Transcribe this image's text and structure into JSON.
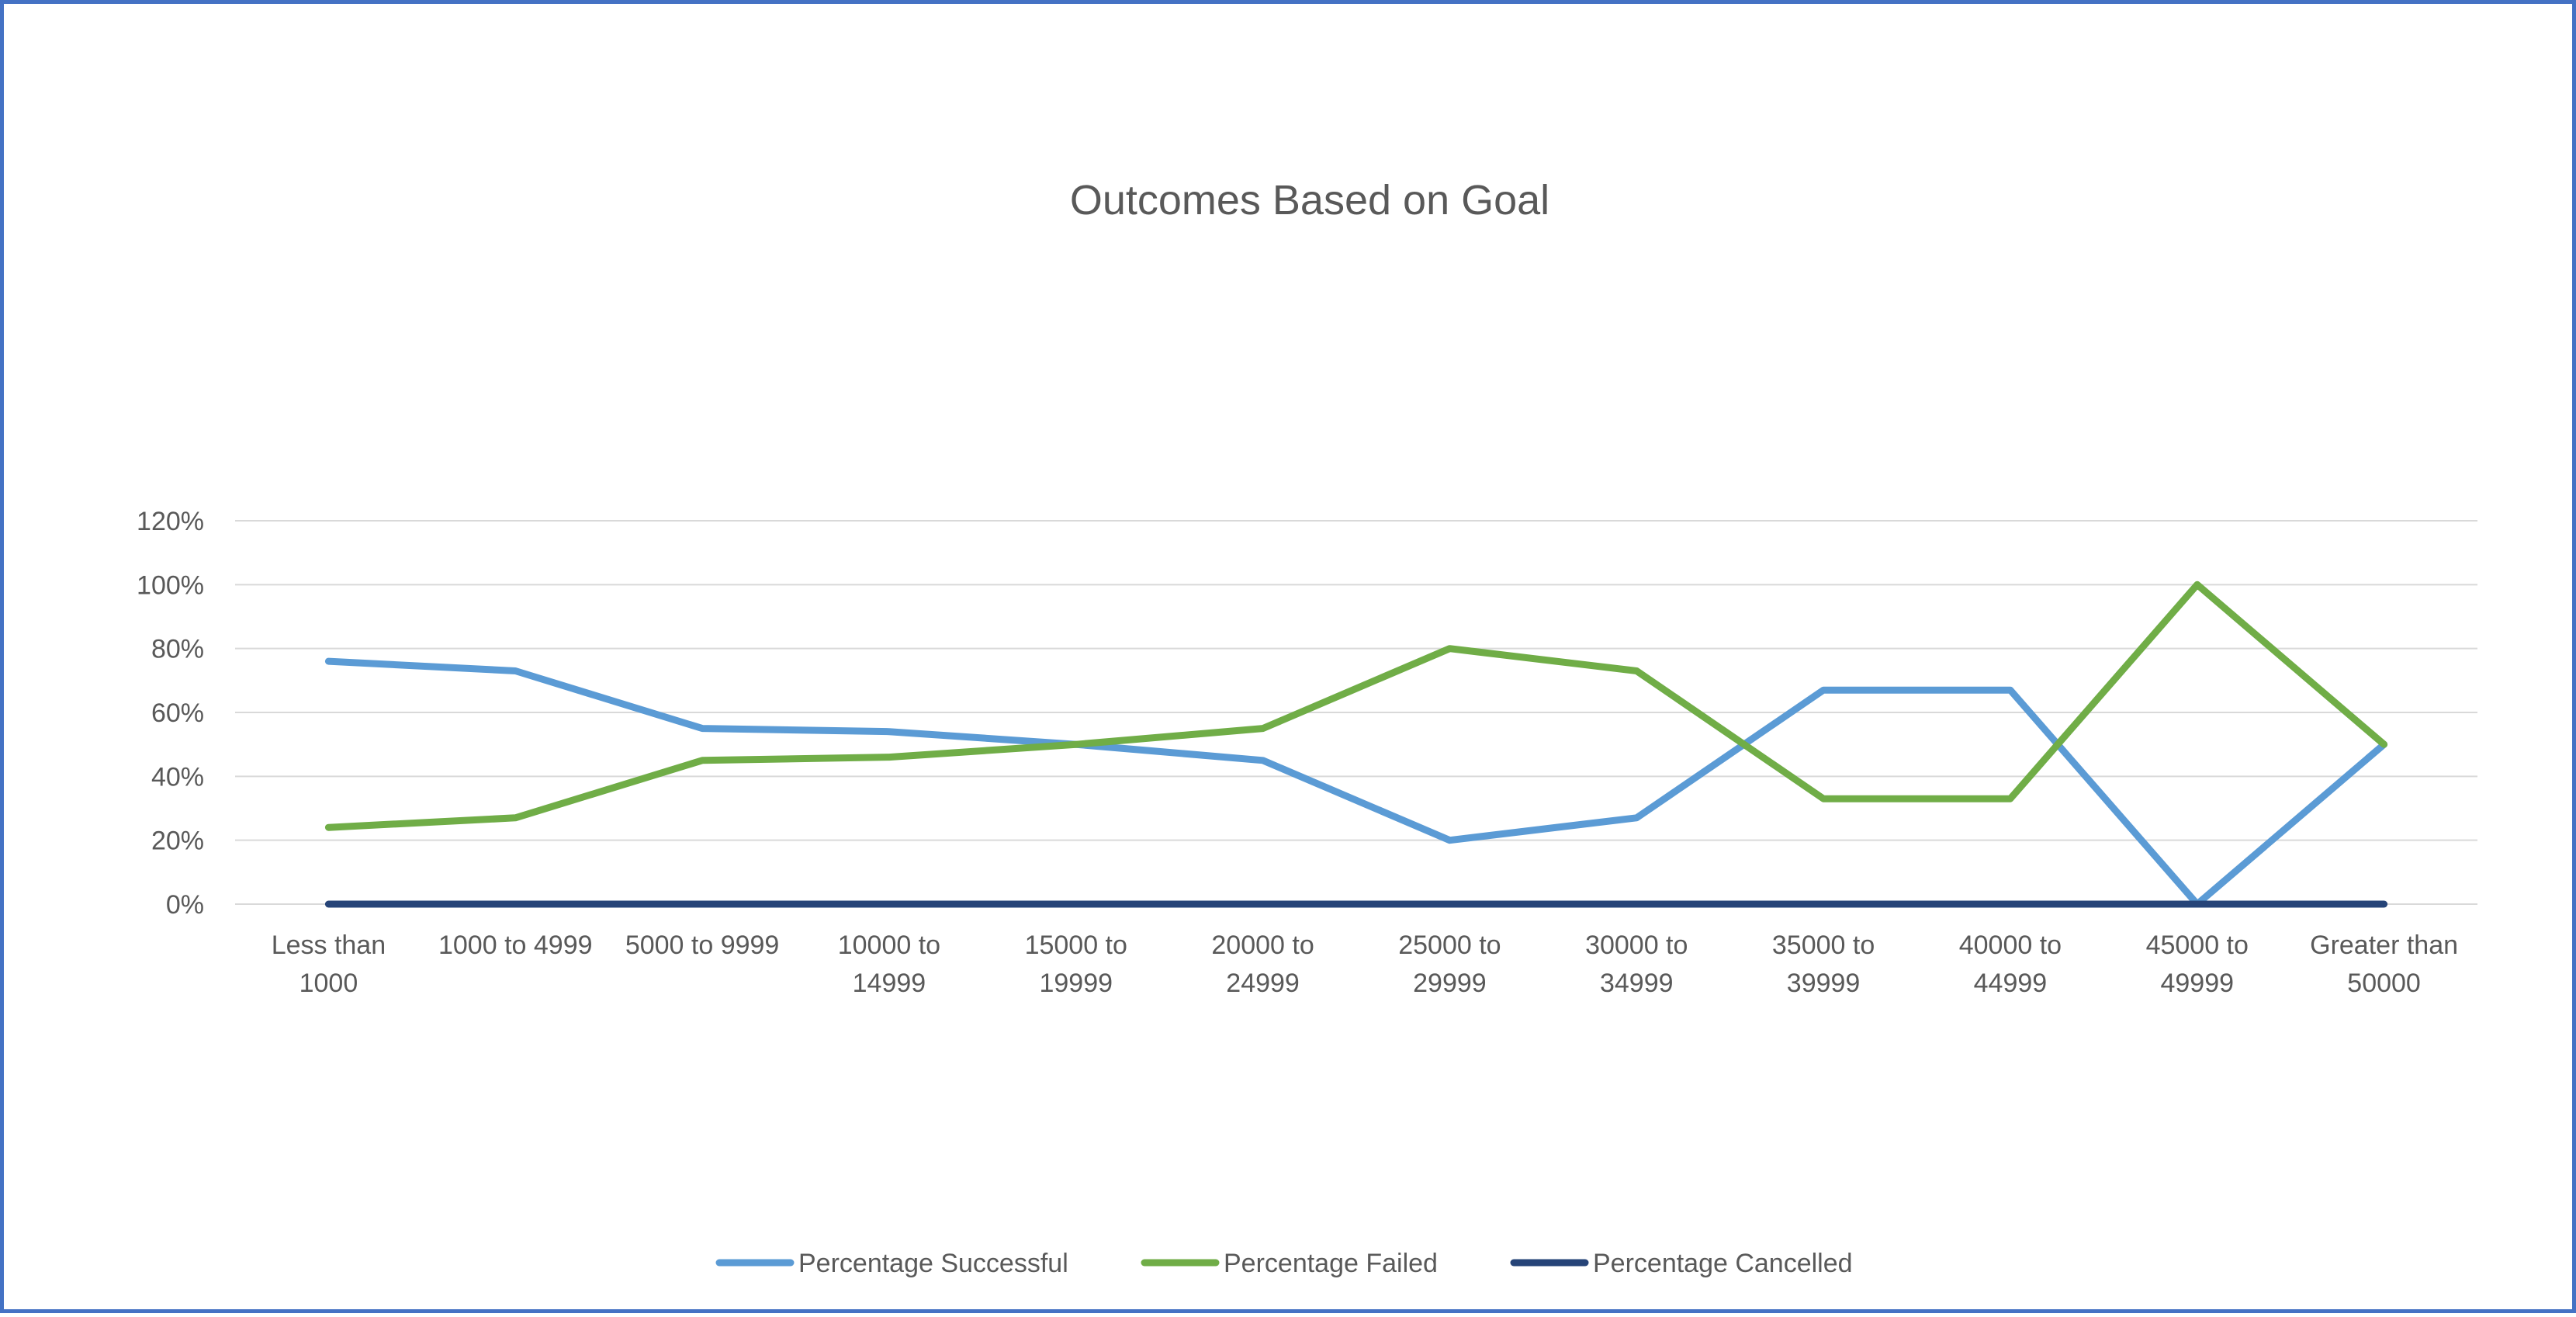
{
  "chart_data": {
    "type": "line",
    "title": "Outcomes Based on Goal",
    "xlabel": "",
    "ylabel": "",
    "categories": [
      [
        "Less than",
        "1000"
      ],
      [
        "1000 to 4999"
      ],
      [
        "5000 to 9999"
      ],
      [
        "10000 to",
        "14999"
      ],
      [
        "15000 to",
        "19999"
      ],
      [
        "20000 to",
        "24999"
      ],
      [
        "25000 to",
        "29999"
      ],
      [
        "30000 to",
        "34999"
      ],
      [
        "35000 to",
        "39999"
      ],
      [
        "40000 to",
        "44999"
      ],
      [
        "45000 to",
        "49999"
      ],
      [
        "Greater than",
        "50000"
      ]
    ],
    "ylim": [
      0,
      1.2
    ],
    "yticks": [
      "0%",
      "20%",
      "40%",
      "60%",
      "80%",
      "100%",
      "120%"
    ],
    "ytick_values": [
      0,
      0.2,
      0.4,
      0.6,
      0.8,
      1.0,
      1.2
    ],
    "grid": true,
    "legend_position": "bottom",
    "series": [
      {
        "name": "Percentage Successful",
        "color": "#5b9bd5",
        "values": [
          0.76,
          0.73,
          0.55,
          0.54,
          0.5,
          0.45,
          0.2,
          0.27,
          0.67,
          0.67,
          0.0,
          0.5
        ]
      },
      {
        "name": "Percentage Failed",
        "color": "#70ad47",
        "values": [
          0.24,
          0.27,
          0.45,
          0.46,
          0.5,
          0.55,
          0.8,
          0.73,
          0.33,
          0.33,
          1.0,
          0.5
        ]
      },
      {
        "name": "Percentage Cancelled",
        "color": "#264478",
        "values": [
          0,
          0,
          0,
          0,
          0,
          0,
          0,
          0,
          0,
          0,
          0,
          0
        ]
      }
    ]
  }
}
